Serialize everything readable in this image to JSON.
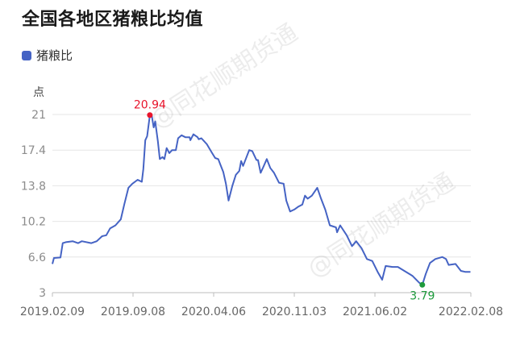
{
  "chart_data": {
    "type": "line",
    "title": "全国各地区猪粮比均值",
    "ylabel": "点",
    "xlabel": "",
    "ylim": [
      3,
      21
    ],
    "xlim": [
      "2019-02-09",
      "2022-02-08"
    ],
    "y_ticks": [
      "3",
      "6.6",
      "10.2",
      "13.8",
      "17.4",
      "21"
    ],
    "x_ticks": [
      {
        "label": "2019.02.09",
        "date": "2019-02-09"
      },
      {
        "label": "2019.09.08",
        "date": "2019-09-08"
      },
      {
        "label": "2020.04.06",
        "date": "2020-04-06"
      },
      {
        "label": "2020.11.03",
        "date": "2020-11-03"
      },
      {
        "label": "2021.06.02",
        "date": "2021-06-02"
      },
      {
        "label": "2022.02.08",
        "date": "2022-02-08"
      }
    ],
    "grid": true,
    "legend_position": "top-left",
    "series": [
      {
        "name": "猪粮比",
        "color": "#4563c4",
        "points": [
          [
            "2019-02-09",
            5.9
          ],
          [
            "2019-02-13",
            6.5
          ],
          [
            "2019-03-02",
            6.55
          ],
          [
            "2019-03-08",
            8.0
          ],
          [
            "2019-03-16",
            8.1
          ],
          [
            "2019-04-03",
            8.2
          ],
          [
            "2019-04-17",
            8.0
          ],
          [
            "2019-04-27",
            8.2
          ],
          [
            "2019-05-22",
            8.0
          ],
          [
            "2019-06-05",
            8.2
          ],
          [
            "2019-06-19",
            8.7
          ],
          [
            "2019-06-30",
            8.8
          ],
          [
            "2019-07-10",
            9.5
          ],
          [
            "2019-07-24",
            9.8
          ],
          [
            "2019-08-07",
            10.4
          ],
          [
            "2019-08-16",
            11.9
          ],
          [
            "2019-08-27",
            13.6
          ],
          [
            "2019-09-06",
            14.0
          ],
          [
            "2019-09-20",
            14.4
          ],
          [
            "2019-10-01",
            14.2
          ],
          [
            "2019-10-05",
            15.5
          ],
          [
            "2019-10-10",
            18.4
          ],
          [
            "2019-10-15",
            18.8
          ],
          [
            "2019-10-22",
            20.94
          ],
          [
            "2019-10-27",
            20.9
          ],
          [
            "2019-11-01",
            19.7
          ],
          [
            "2019-11-05",
            20.3
          ],
          [
            "2019-11-12",
            18.3
          ],
          [
            "2019-11-17",
            16.5
          ],
          [
            "2019-11-24",
            16.7
          ],
          [
            "2019-11-29",
            16.5
          ],
          [
            "2019-12-05",
            17.6
          ],
          [
            "2019-12-12",
            17.1
          ],
          [
            "2019-12-19",
            17.4
          ],
          [
            "2019-12-29",
            17.4
          ],
          [
            "2020-01-04",
            18.6
          ],
          [
            "2020-01-13",
            18.9
          ],
          [
            "2020-01-23",
            18.7
          ],
          [
            "2020-02-03",
            18.7
          ],
          [
            "2020-02-05",
            18.4
          ],
          [
            "2020-02-13",
            19.0
          ],
          [
            "2020-02-24",
            18.7
          ],
          [
            "2020-02-27",
            18.5
          ],
          [
            "2020-03-05",
            18.6
          ],
          [
            "2020-03-19",
            18.0
          ],
          [
            "2020-04-02",
            17.1
          ],
          [
            "2020-04-10",
            16.6
          ],
          [
            "2020-04-18",
            16.5
          ],
          [
            "2020-04-24",
            15.9
          ],
          [
            "2020-05-01",
            15.2
          ],
          [
            "2020-05-08",
            14.0
          ],
          [
            "2020-05-15",
            12.3
          ],
          [
            "2020-05-25",
            13.8
          ],
          [
            "2020-06-03",
            14.9
          ],
          [
            "2020-06-12",
            15.3
          ],
          [
            "2020-06-17",
            16.3
          ],
          [
            "2020-06-22",
            15.8
          ],
          [
            "2020-06-29",
            16.5
          ],
          [
            "2020-07-08",
            17.4
          ],
          [
            "2020-07-16",
            17.3
          ],
          [
            "2020-07-27",
            16.4
          ],
          [
            "2020-07-31",
            16.4
          ],
          [
            "2020-08-07",
            15.1
          ],
          [
            "2020-08-14",
            15.7
          ],
          [
            "2020-08-23",
            16.5
          ],
          [
            "2020-09-01",
            15.6
          ],
          [
            "2020-09-11",
            15.1
          ],
          [
            "2020-09-24",
            14.1
          ],
          [
            "2020-10-06",
            14.0
          ],
          [
            "2020-10-13",
            12.3
          ],
          [
            "2020-10-23",
            11.2
          ],
          [
            "2020-11-03",
            11.4
          ],
          [
            "2020-11-14",
            11.7
          ],
          [
            "2020-11-24",
            11.9
          ],
          [
            "2020-12-01",
            12.8
          ],
          [
            "2020-12-08",
            12.5
          ],
          [
            "2020-12-19",
            12.8
          ],
          [
            "2021-01-02",
            13.6
          ],
          [
            "2021-01-12",
            12.5
          ],
          [
            "2021-01-23",
            11.4
          ],
          [
            "2021-02-04",
            9.8
          ],
          [
            "2021-02-20",
            9.6
          ],
          [
            "2021-02-23",
            9.1
          ],
          [
            "2021-03-03",
            9.8
          ],
          [
            "2021-03-20",
            8.8
          ],
          [
            "2021-04-03",
            7.7
          ],
          [
            "2021-04-14",
            8.2
          ],
          [
            "2021-04-28",
            7.5
          ],
          [
            "2021-05-12",
            6.4
          ],
          [
            "2021-05-26",
            6.2
          ],
          [
            "2021-06-09",
            5.1
          ],
          [
            "2021-06-21",
            4.3
          ],
          [
            "2021-06-30",
            5.7
          ],
          [
            "2021-07-18",
            5.6
          ],
          [
            "2021-08-01",
            5.6
          ],
          [
            "2021-08-18",
            5.2
          ],
          [
            "2021-09-08",
            4.7
          ],
          [
            "2021-09-26",
            4.0
          ],
          [
            "2021-10-04",
            3.79
          ],
          [
            "2021-10-13",
            4.9
          ],
          [
            "2021-10-24",
            6.0
          ],
          [
            "2021-11-07",
            6.4
          ],
          [
            "2021-11-25",
            6.6
          ],
          [
            "2021-12-05",
            6.4
          ],
          [
            "2021-12-12",
            5.8
          ],
          [
            "2021-12-30",
            5.9
          ],
          [
            "2022-01-13",
            5.2
          ],
          [
            "2022-01-24",
            5.1
          ],
          [
            "2022-02-07",
            5.1
          ]
        ]
      }
    ],
    "annotations": {
      "max": {
        "label": "20.94",
        "date": "2019-10-22",
        "value": 20.94,
        "color": "#e8142b"
      },
      "min": {
        "label": "3.79",
        "date": "2021-10-04",
        "value": 3.79,
        "color": "#1e9a3c"
      }
    }
  },
  "watermark": "@同花顺期货通"
}
